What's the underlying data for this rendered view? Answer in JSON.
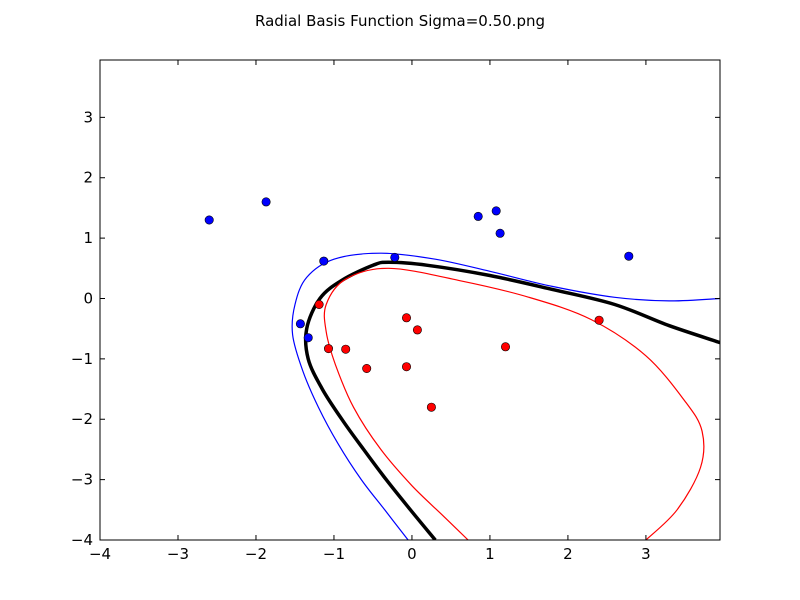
{
  "chart_data": {
    "type": "scatter",
    "title": "Radial Basis Function Sigma=0.50.png",
    "xlabel": "",
    "ylabel": "",
    "xlim": [
      -4,
      3.95
    ],
    "ylim": [
      -4,
      3.95
    ],
    "x_ticks": [
      -4,
      -3,
      -2,
      -1,
      0,
      1,
      2,
      3
    ],
    "y_ticks": [
      -4,
      -3,
      -2,
      -1,
      0,
      1,
      2,
      3
    ],
    "x_tick_labels": [
      "−4",
      "−3",
      "−2",
      "−1",
      "0",
      "1",
      "2",
      "3"
    ],
    "y_tick_labels": [
      "−4",
      "−3",
      "−2",
      "−1",
      "0",
      "1",
      "2",
      "3"
    ],
    "grid": false,
    "legend": "none",
    "series": [
      {
        "color": "#0000ff",
        "points": [
          [
            -2.6,
            1.3
          ],
          [
            -1.87,
            1.6
          ],
          [
            -1.13,
            0.62
          ],
          [
            -0.22,
            0.68
          ],
          [
            0.85,
            1.36
          ],
          [
            1.08,
            1.45
          ],
          [
            1.13,
            1.08
          ],
          [
            2.78,
            0.7
          ],
          [
            -1.43,
            -0.42
          ],
          [
            -1.33,
            -0.65
          ]
        ]
      },
      {
        "color": "#ff0000",
        "points": [
          [
            -1.19,
            -0.1
          ],
          [
            -1.07,
            -0.83
          ],
          [
            -0.85,
            -0.84
          ],
          [
            -0.58,
            -1.16
          ],
          [
            -0.07,
            -0.32
          ],
          [
            0.07,
            -0.52
          ],
          [
            -0.07,
            -1.13
          ],
          [
            0.25,
            -1.8
          ],
          [
            1.2,
            -0.8
          ],
          [
            2.4,
            -0.36
          ]
        ]
      }
    ],
    "curves": [
      {
        "role": "decision-boundary",
        "color": "#000000",
        "width": 3.5,
        "points": [
          [
            0.3,
            -4.0
          ],
          [
            -0.02,
            -3.5
          ],
          [
            -0.33,
            -3.0
          ],
          [
            -0.62,
            -2.5
          ],
          [
            -0.9,
            -2.0
          ],
          [
            -1.15,
            -1.5
          ],
          [
            -1.33,
            -1.0
          ],
          [
            -1.35,
            -0.5
          ],
          [
            -1.18,
            0.0
          ],
          [
            -0.9,
            0.3
          ],
          [
            -0.5,
            0.55
          ],
          [
            -0.3,
            0.6
          ],
          [
            0.2,
            0.55
          ],
          [
            1.0,
            0.38
          ],
          [
            1.8,
            0.15
          ],
          [
            2.6,
            -0.1
          ],
          [
            3.3,
            -0.45
          ],
          [
            3.95,
            -0.73
          ]
        ]
      },
      {
        "role": "margin",
        "color": "#0000ff",
        "width": 1.2,
        "points": [
          [
            -0.05,
            -4.0
          ],
          [
            -0.35,
            -3.5
          ],
          [
            -0.65,
            -3.0
          ],
          [
            -0.95,
            -2.4
          ],
          [
            -1.2,
            -1.8
          ],
          [
            -1.4,
            -1.2
          ],
          [
            -1.53,
            -0.6
          ],
          [
            -1.5,
            -0.1
          ],
          [
            -1.35,
            0.35
          ],
          [
            -1.0,
            0.65
          ],
          [
            -0.4,
            0.75
          ],
          [
            0.3,
            0.65
          ],
          [
            1.0,
            0.45
          ],
          [
            1.8,
            0.2
          ],
          [
            2.6,
            0.02
          ],
          [
            3.3,
            -0.04
          ],
          [
            3.95,
            0.0
          ]
        ]
      },
      {
        "role": "margin",
        "color": "#ff0000",
        "width": 1.2,
        "points": [
          [
            0.72,
            -4.0
          ],
          [
            0.4,
            -3.6
          ],
          [
            0.0,
            -3.1
          ],
          [
            -0.4,
            -2.5
          ],
          [
            -0.75,
            -1.8
          ],
          [
            -0.98,
            -1.1
          ],
          [
            -1.1,
            -0.55
          ],
          [
            -1.1,
            -0.1
          ],
          [
            -0.85,
            0.32
          ],
          [
            -0.3,
            0.5
          ],
          [
            0.6,
            0.3
          ],
          [
            1.5,
            0.02
          ],
          [
            2.3,
            -0.35
          ],
          [
            3.0,
            -0.95
          ],
          [
            3.5,
            -1.7
          ],
          [
            3.72,
            -2.2
          ],
          [
            3.7,
            -2.8
          ],
          [
            3.4,
            -3.5
          ],
          [
            3.0,
            -4.0
          ]
        ]
      }
    ]
  }
}
